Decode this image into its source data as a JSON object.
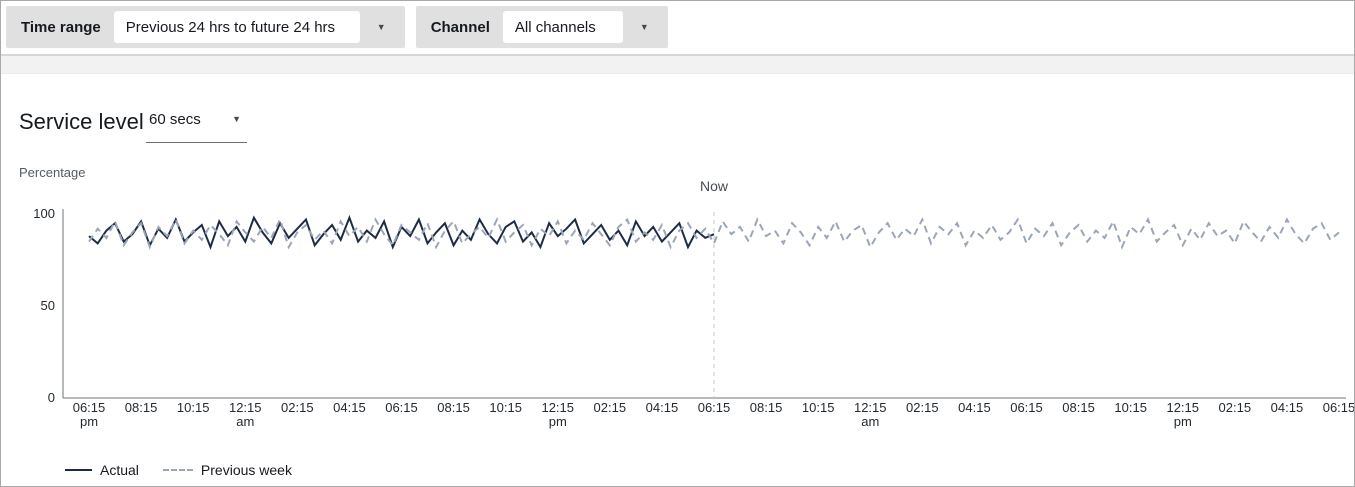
{
  "toolbar": {
    "time_range": {
      "label": "Time range",
      "value": "Previous 24 hrs to future 24 hrs"
    },
    "channel": {
      "label": "Channel",
      "value": "All channels"
    },
    "caret_icon": "▼"
  },
  "panel": {
    "title": "Service level",
    "threshold_value": "60 secs"
  },
  "chart_data": {
    "type": "line",
    "title": "Service level",
    "ylabel": "Percentage",
    "ylim": [
      0,
      100
    ],
    "yticks": [
      0,
      50,
      100
    ],
    "grid": false,
    "legend_position": "bottom-left",
    "now_label": "Now",
    "now_tick_index": 12,
    "points_per_tick": 6,
    "x_interval_minutes": 20,
    "x_tick_labels": [
      {
        "t": "06:15",
        "sub": "pm"
      },
      {
        "t": "08:15",
        "sub": ""
      },
      {
        "t": "10:15",
        "sub": ""
      },
      {
        "t": "12:15",
        "sub": "am"
      },
      {
        "t": "02:15",
        "sub": ""
      },
      {
        "t": "04:15",
        "sub": ""
      },
      {
        "t": "06:15",
        "sub": ""
      },
      {
        "t": "08:15",
        "sub": ""
      },
      {
        "t": "10:15",
        "sub": ""
      },
      {
        "t": "12:15",
        "sub": "pm"
      },
      {
        "t": "02:15",
        "sub": ""
      },
      {
        "t": "04:15",
        "sub": ""
      },
      {
        "t": "06:15",
        "sub": ""
      },
      {
        "t": "08:15",
        "sub": ""
      },
      {
        "t": "10:15",
        "sub": ""
      },
      {
        "t": "12:15",
        "sub": "am"
      },
      {
        "t": "02:15",
        "sub": ""
      },
      {
        "t": "04:15",
        "sub": ""
      },
      {
        "t": "06:15",
        "sub": ""
      },
      {
        "t": "08:15",
        "sub": ""
      },
      {
        "t": "10:15",
        "sub": ""
      },
      {
        "t": "12:15",
        "sub": "pm"
      },
      {
        "t": "02:15",
        "sub": ""
      },
      {
        "t": "04:15",
        "sub": ""
      },
      {
        "t": "06:15",
        "sub": ""
      }
    ],
    "series": [
      {
        "name": "Actual",
        "style": "solid",
        "color": "#1d2c44",
        "values": [
          88,
          84,
          91,
          95,
          85,
          89,
          96,
          83,
          92,
          87,
          97,
          85,
          90,
          94,
          82,
          96,
          88,
          93,
          85,
          98,
          90,
          84,
          95,
          87,
          92,
          97,
          83,
          89,
          94,
          86,
          98,
          85,
          91,
          87,
          96,
          82,
          93,
          88,
          97,
          84,
          90,
          95,
          83,
          91,
          86,
          97,
          89,
          84,
          93,
          96,
          85,
          90,
          82,
          95,
          88,
          92,
          97,
          84,
          89,
          94,
          86,
          91,
          83,
          96,
          88,
          93,
          85,
          90,
          95,
          82,
          91,
          87,
          89
        ]
      },
      {
        "name": "Previous week",
        "style": "dashed",
        "color": "#9aa6b8",
        "values": [
          85,
          92,
          87,
          96,
          83,
          90,
          95,
          82,
          93,
          88,
          97,
          84,
          91,
          86,
          94,
          89,
          83,
          96,
          90,
          85,
          93,
          87,
          97,
          82,
          90,
          94,
          86,
          91,
          84,
          96,
          88,
          93,
          85,
          97,
          89,
          83,
          94,
          90,
          86,
          95,
          82,
          91,
          96,
          84,
          89,
          93,
          87,
          97,
          85,
          90,
          94,
          83,
          92,
          88,
          96,
          84,
          91,
          86,
          95,
          89,
          83,
          93,
          97,
          85,
          90,
          86,
          94,
          82,
          91,
          95,
          87,
          92,
          84,
          96,
          89,
          93,
          85,
          97,
          88,
          91,
          84,
          95,
          90,
          83,
          93,
          87,
          96,
          85,
          91,
          94,
          82,
          90,
          95,
          86,
          92,
          88,
          97,
          84,
          93,
          89,
          95,
          83,
          91,
          87,
          94,
          86,
          90,
          97,
          84,
          92,
          88,
          95,
          83,
          90,
          94,
          85,
          91,
          87,
          96,
          82,
          93,
          89,
          97,
          85,
          90,
          94,
          83,
          92,
          86,
          95,
          88,
          91,
          84,
          96,
          90,
          85,
          93,
          87,
          97,
          89,
          84,
          92,
          95,
          86,
          90
        ]
      }
    ],
    "now_line_color": "#c6c6c6",
    "axis_color": "#6e747a"
  }
}
